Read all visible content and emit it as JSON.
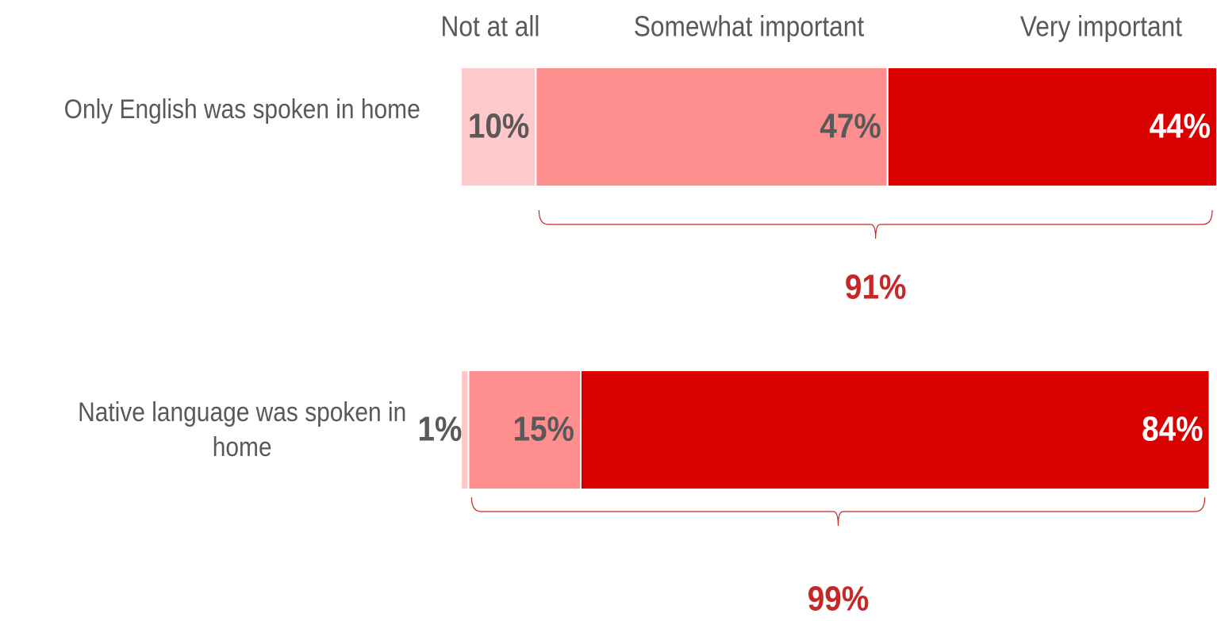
{
  "chart_data": {
    "type": "stacked-bar-horizontal",
    "categories": [
      "Only English was spoken in home",
      "Native language was spoken in home"
    ],
    "series": [
      {
        "name": "Not at all",
        "color": "#ffc9cb",
        "label_color": "#595959",
        "values": [
          10,
          1
        ],
        "value_labels": [
          "10%",
          "1%"
        ]
      },
      {
        "name": "Somewhat important",
        "color": "#ff8f8f",
        "label_color": "#595959",
        "values": [
          47,
          15
        ],
        "value_labels": [
          "47%",
          "15%"
        ]
      },
      {
        "name": "Very important",
        "color": "#d90000",
        "label_color": "#ffffff",
        "values": [
          44,
          84
        ],
        "value_labels": [
          "44%",
          "84%"
        ]
      }
    ],
    "totals": {
      "color": "#c62828",
      "values": [
        91,
        99
      ],
      "value_labels": [
        "91%",
        "99%"
      ]
    },
    "xlim": [
      0,
      101
    ]
  }
}
